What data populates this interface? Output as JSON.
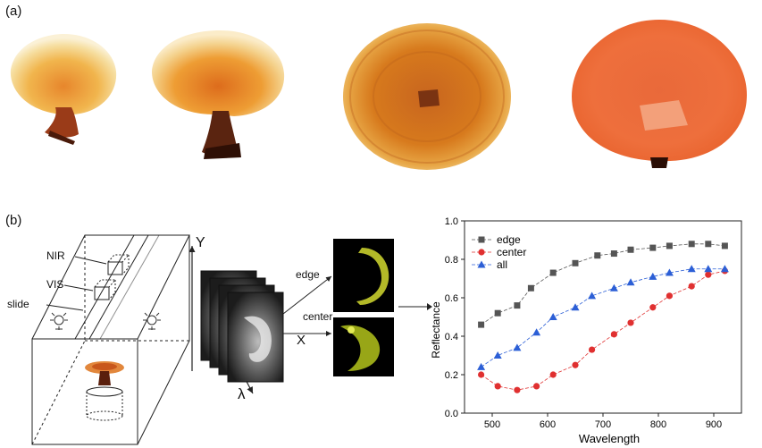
{
  "panel_a": {
    "label": "(a)"
  },
  "panel_b": {
    "label": "(b)"
  },
  "schematic": {
    "labels": {
      "nir": "NIR",
      "vis": "VIS",
      "slide": "slide"
    }
  },
  "cube": {
    "axis_y": "Y",
    "axis_x": "X",
    "axis_lambda": "λ",
    "region_edge": "edge",
    "region_center": "center"
  },
  "chart_data": {
    "type": "line",
    "xlabel": "Wavelength",
    "ylabel": "Reflectance",
    "xlim": [
      450,
      950
    ],
    "ylim": [
      0.0,
      1.0
    ],
    "xticks": [
      500,
      600,
      700,
      800,
      900
    ],
    "yticks": [
      0.0,
      0.2,
      0.4,
      0.6,
      0.8,
      1.0
    ],
    "legend_position": "top-left",
    "grid": false,
    "series": [
      {
        "name": "edge",
        "marker": "square",
        "color": "#555555",
        "x": [
          480,
          510,
          545,
          570,
          610,
          650,
          690,
          720,
          750,
          790,
          820,
          860,
          890,
          920
        ],
        "y": [
          0.46,
          0.52,
          0.56,
          0.65,
          0.73,
          0.78,
          0.82,
          0.83,
          0.85,
          0.86,
          0.87,
          0.88,
          0.88,
          0.87
        ]
      },
      {
        "name": "center",
        "marker": "circle",
        "color": "#e03030",
        "x": [
          480,
          510,
          545,
          580,
          610,
          650,
          680,
          720,
          750,
          790,
          820,
          860,
          890,
          920
        ],
        "y": [
          0.2,
          0.14,
          0.12,
          0.14,
          0.2,
          0.25,
          0.33,
          0.41,
          0.47,
          0.55,
          0.61,
          0.66,
          0.72,
          0.74
        ]
      },
      {
        "name": "all",
        "marker": "triangle",
        "color": "#2c5fd6",
        "x": [
          480,
          510,
          545,
          580,
          610,
          650,
          680,
          720,
          750,
          790,
          820,
          860,
          890,
          920
        ],
        "y": [
          0.24,
          0.3,
          0.34,
          0.42,
          0.5,
          0.55,
          0.61,
          0.65,
          0.68,
          0.71,
          0.73,
          0.75,
          0.75,
          0.75
        ]
      }
    ]
  }
}
